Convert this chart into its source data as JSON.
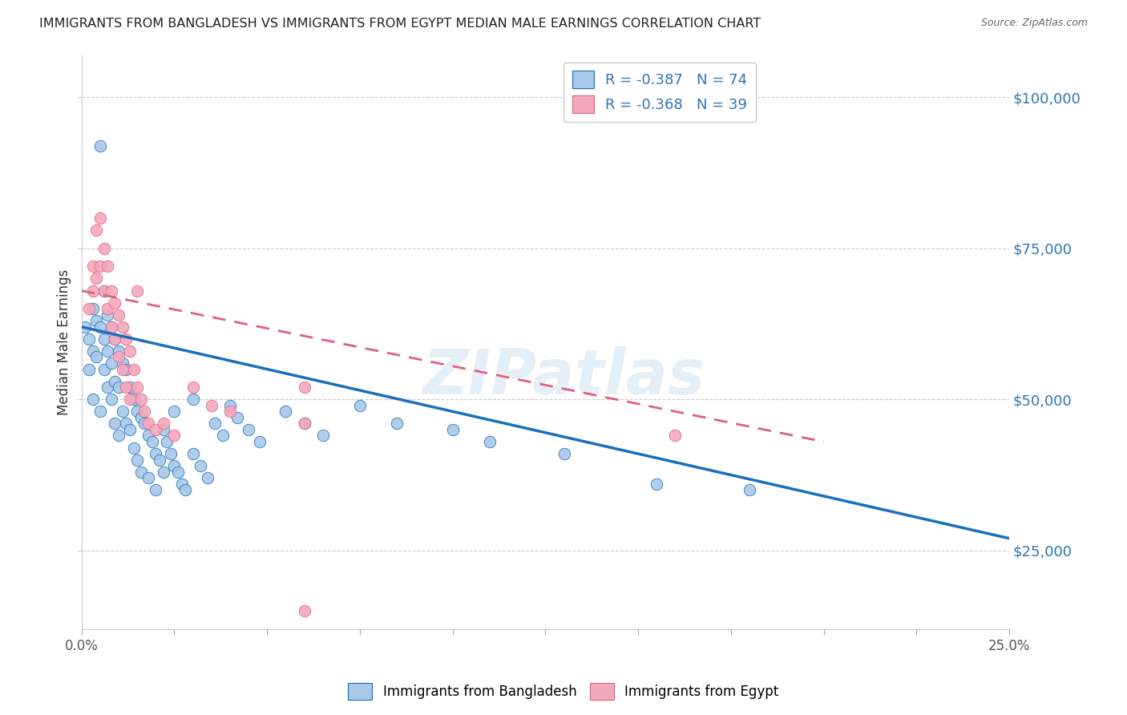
{
  "title": "IMMIGRANTS FROM BANGLADESH VS IMMIGRANTS FROM EGYPT MEDIAN MALE EARNINGS CORRELATION CHART",
  "source": "Source: ZipAtlas.com",
  "ylabel": "Median Male Earnings",
  "y_ticks": [
    25000,
    50000,
    75000,
    100000
  ],
  "y_tick_labels": [
    "$25,000",
    "$50,000",
    "$75,000",
    "$100,000"
  ],
  "x_range": [
    0.0,
    0.25
  ],
  "y_range": [
    12000,
    107000
  ],
  "color_bangladesh": "#a8c8e8",
  "color_egypt": "#f4a8bc",
  "trendline_bangladesh": "#1a6fbd",
  "trendline_egypt": "#e06080",
  "watermark": "ZIPatlas",
  "bang_trend_x": [
    0.0,
    0.25
  ],
  "bang_trend_y": [
    62000,
    27000
  ],
  "egypt_trend_x": [
    0.0,
    0.2
  ],
  "egypt_trend_y": [
    68000,
    43000
  ],
  "scatter_bangladesh": [
    [
      0.001,
      62000
    ],
    [
      0.002,
      60000
    ],
    [
      0.002,
      55000
    ],
    [
      0.003,
      65000
    ],
    [
      0.003,
      58000
    ],
    [
      0.003,
      50000
    ],
    [
      0.004,
      63000
    ],
    [
      0.004,
      57000
    ],
    [
      0.005,
      92000
    ],
    [
      0.005,
      62000
    ],
    [
      0.005,
      48000
    ],
    [
      0.006,
      68000
    ],
    [
      0.006,
      60000
    ],
    [
      0.006,
      55000
    ],
    [
      0.007,
      64000
    ],
    [
      0.007,
      58000
    ],
    [
      0.007,
      52000
    ],
    [
      0.008,
      62000
    ],
    [
      0.008,
      56000
    ],
    [
      0.008,
      50000
    ],
    [
      0.009,
      60000
    ],
    [
      0.009,
      53000
    ],
    [
      0.009,
      46000
    ],
    [
      0.01,
      58000
    ],
    [
      0.01,
      52000
    ],
    [
      0.01,
      44000
    ],
    [
      0.011,
      56000
    ],
    [
      0.011,
      48000
    ],
    [
      0.012,
      46000
    ],
    [
      0.012,
      55000
    ],
    [
      0.013,
      52000
    ],
    [
      0.013,
      45000
    ],
    [
      0.014,
      50000
    ],
    [
      0.014,
      42000
    ],
    [
      0.015,
      48000
    ],
    [
      0.015,
      40000
    ],
    [
      0.016,
      47000
    ],
    [
      0.016,
      38000
    ],
    [
      0.017,
      46000
    ],
    [
      0.018,
      44000
    ],
    [
      0.018,
      37000
    ],
    [
      0.019,
      43000
    ],
    [
      0.02,
      41000
    ],
    [
      0.02,
      35000
    ],
    [
      0.021,
      40000
    ],
    [
      0.022,
      45000
    ],
    [
      0.022,
      38000
    ],
    [
      0.023,
      43000
    ],
    [
      0.024,
      41000
    ],
    [
      0.025,
      39000
    ],
    [
      0.025,
      48000
    ],
    [
      0.026,
      38000
    ],
    [
      0.027,
      36000
    ],
    [
      0.028,
      35000
    ],
    [
      0.03,
      50000
    ],
    [
      0.03,
      41000
    ],
    [
      0.032,
      39000
    ],
    [
      0.034,
      37000
    ],
    [
      0.036,
      46000
    ],
    [
      0.038,
      44000
    ],
    [
      0.04,
      49000
    ],
    [
      0.042,
      47000
    ],
    [
      0.045,
      45000
    ],
    [
      0.048,
      43000
    ],
    [
      0.055,
      48000
    ],
    [
      0.06,
      46000
    ],
    [
      0.065,
      44000
    ],
    [
      0.075,
      49000
    ],
    [
      0.085,
      46000
    ],
    [
      0.1,
      45000
    ],
    [
      0.11,
      43000
    ],
    [
      0.13,
      41000
    ],
    [
      0.155,
      36000
    ],
    [
      0.18,
      35000
    ]
  ],
  "scatter_egypt": [
    [
      0.002,
      65000
    ],
    [
      0.003,
      72000
    ],
    [
      0.003,
      68000
    ],
    [
      0.004,
      78000
    ],
    [
      0.004,
      70000
    ],
    [
      0.005,
      80000
    ],
    [
      0.005,
      72000
    ],
    [
      0.006,
      75000
    ],
    [
      0.006,
      68000
    ],
    [
      0.007,
      72000
    ],
    [
      0.007,
      65000
    ],
    [
      0.008,
      68000
    ],
    [
      0.008,
      62000
    ],
    [
      0.009,
      66000
    ],
    [
      0.009,
      60000
    ],
    [
      0.01,
      64000
    ],
    [
      0.01,
      57000
    ],
    [
      0.011,
      62000
    ],
    [
      0.011,
      55000
    ],
    [
      0.012,
      60000
    ],
    [
      0.012,
      52000
    ],
    [
      0.013,
      58000
    ],
    [
      0.013,
      50000
    ],
    [
      0.014,
      55000
    ],
    [
      0.015,
      68000
    ],
    [
      0.015,
      52000
    ],
    [
      0.016,
      50000
    ],
    [
      0.017,
      48000
    ],
    [
      0.018,
      46000
    ],
    [
      0.02,
      45000
    ],
    [
      0.022,
      46000
    ],
    [
      0.025,
      44000
    ],
    [
      0.03,
      52000
    ],
    [
      0.035,
      49000
    ],
    [
      0.04,
      48000
    ],
    [
      0.06,
      52000
    ],
    [
      0.06,
      46000
    ],
    [
      0.16,
      44000
    ],
    [
      0.06,
      15000
    ]
  ]
}
